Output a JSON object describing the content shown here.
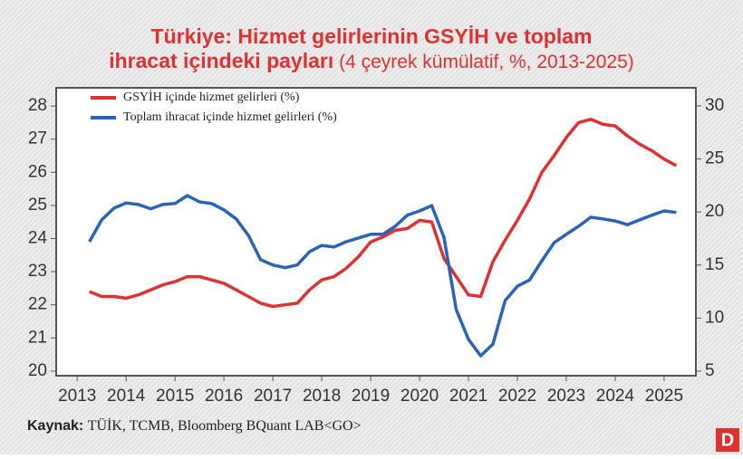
{
  "chart_data": {
    "type": "line",
    "title_lines": [
      "Türkiye: Hizmet gelirlerinin GSYİH ve toplam",
      "ihracat içindeki payları"
    ],
    "subtitle": "(4 çeyrek kümülatif, %, 2013-2025)",
    "source_label": "Kaynak:",
    "source": "TÜİK, TCMB, Bloomberg BQuant LAB<GO>",
    "logo": "D",
    "legend": "top-left",
    "x": [
      2013.25,
      2013.5,
      2013.75,
      2014,
      2014.25,
      2014.5,
      2014.75,
      2015,
      2015.25,
      2015.5,
      2015.75,
      2016,
      2016.25,
      2016.5,
      2016.75,
      2017,
      2017.25,
      2017.5,
      2017.75,
      2018,
      2018.25,
      2018.5,
      2018.75,
      2019,
      2019.25,
      2019.5,
      2019.75,
      2020,
      2020.25,
      2020.5,
      2020.75,
      2021,
      2021.25,
      2021.5,
      2021.75,
      2022,
      2022.25,
      2022.5,
      2022.75,
      2023,
      2023.25,
      2023.5,
      2023.75,
      2024,
      2024.25,
      2024.5,
      2024.75,
      2025,
      2025.25
    ],
    "xlim": [
      2012.57,
      2025.65
    ],
    "xticks": [
      2013,
      2014,
      2015,
      2016,
      2017,
      2018,
      2019,
      2020,
      2021,
      2022,
      2023,
      2024,
      2025
    ],
    "ylim": [
      19.86,
      28.55
    ],
    "yticks": [
      20,
      21,
      22,
      23,
      24,
      25,
      26,
      27,
      28
    ],
    "y2lim": [
      4.57,
      31.7
    ],
    "y2ticks": [
      5,
      10,
      15,
      20,
      25,
      30
    ],
    "series": [
      {
        "name": "GSYİH içinde hizmet gelirleri (%)",
        "color": "#e03131",
        "values": [
          22.4,
          22.25,
          22.25,
          22.2,
          22.3,
          22.45,
          22.6,
          22.7,
          22.85,
          22.85,
          22.75,
          22.65,
          22.45,
          22.25,
          22.05,
          21.95,
          22.0,
          22.05,
          22.45,
          22.75,
          22.85,
          23.1,
          23.45,
          23.9,
          24.05,
          24.25,
          24.3,
          24.55,
          24.5,
          23.4,
          22.85,
          22.3,
          22.25,
          23.3,
          23.95,
          24.55,
          25.2,
          26.0,
          26.5,
          27.05,
          27.5,
          27.6,
          27.45,
          27.4,
          27.1,
          26.85,
          26.65,
          26.4,
          26.2
        ]
      },
      {
        "name": "Toplam ihracat içinde hizmet gelirleri (%)",
        "color": "#2a63b8",
        "axis": "y2",
        "values": [
          17.2,
          19.25,
          20.35,
          20.85,
          20.7,
          20.3,
          20.7,
          20.8,
          21.55,
          20.95,
          20.8,
          20.2,
          19.35,
          17.8,
          15.5,
          15.0,
          14.75,
          15.0,
          16.25,
          16.85,
          16.7,
          17.2,
          17.55,
          17.9,
          17.9,
          18.65,
          19.7,
          20.1,
          20.6,
          17.6,
          10.8,
          8.0,
          6.45,
          7.55,
          11.65,
          13.0,
          13.6,
          15.4,
          17.1,
          17.9,
          18.65,
          19.5,
          19.35,
          19.15,
          18.8,
          19.25,
          19.7,
          20.1,
          19.95
        ]
      }
    ]
  }
}
